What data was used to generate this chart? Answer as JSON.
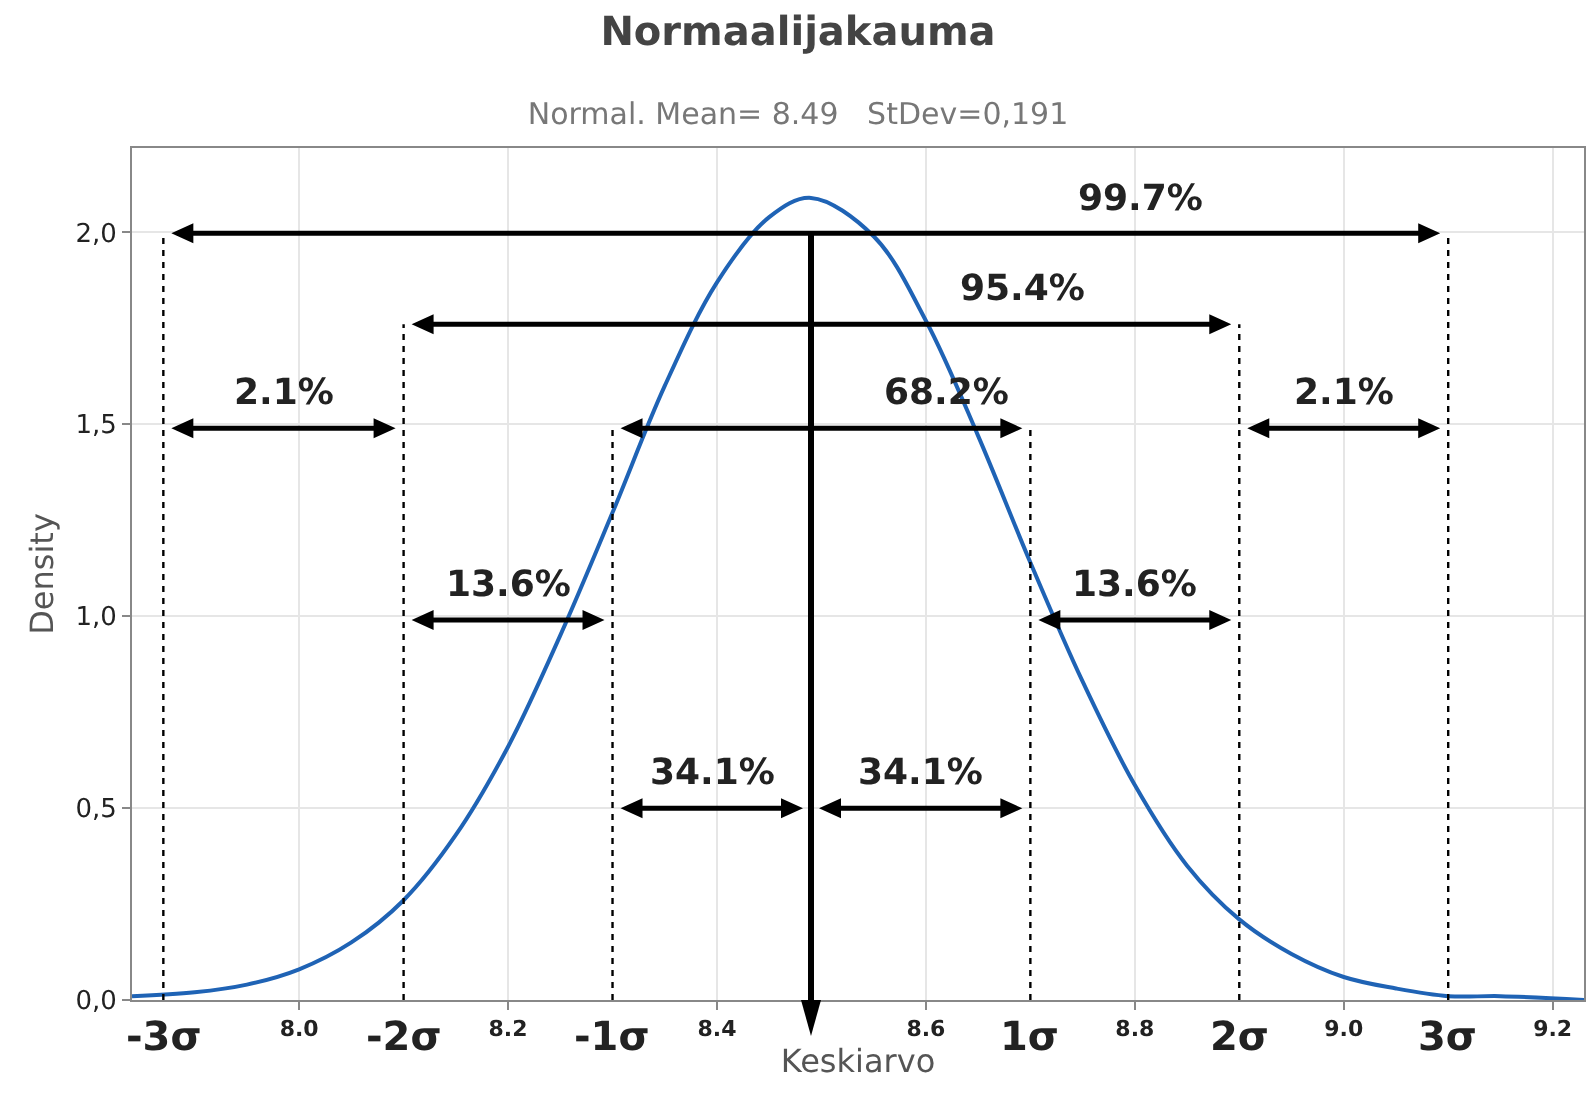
{
  "chart_data": {
    "type": "line",
    "title": "Normaalijakauma",
    "subtitle": "Normal. Mean= 8.49   StDev=0,191",
    "xlabel": "Keskiarvo",
    "ylabel": "Density",
    "x": [
      7.84,
      7.9,
      7.95,
      8.0,
      8.05,
      8.1,
      8.15,
      8.2,
      8.25,
      8.3,
      8.35,
      8.4,
      8.45,
      8.49,
      8.55,
      8.6,
      8.65,
      8.7,
      8.75,
      8.8,
      8.85,
      8.9,
      8.95,
      9.0,
      9.05,
      9.1,
      9.15,
      9.23
    ],
    "series": [
      {
        "color": "#1f63b5",
        "values": [
          0.01,
          0.02,
          0.04,
          0.08,
          0.15,
          0.26,
          0.43,
          0.66,
          0.95,
          1.27,
          1.6,
          1.87,
          2.04,
          2.09,
          1.99,
          1.77,
          1.47,
          1.14,
          0.83,
          0.56,
          0.35,
          0.21,
          0.12,
          0.06,
          0.03,
          0.01,
          0.01,
          0.0
        ]
      }
    ],
    "xlim": [
      7.84,
      9.23
    ],
    "ylim": [
      0,
      2.22
    ],
    "xticks": [
      {
        "value": 8,
        "label": "8.0"
      },
      8.2,
      8.4,
      8.6,
      8.8,
      {
        "value": 9,
        "label": "9.0"
      },
      9.2
    ],
    "yticks": [
      {
        "value": 0,
        "label": "0,0"
      },
      {
        "value": 0.5,
        "label": "0,5"
      },
      {
        "value": 1,
        "label": "1,0"
      },
      {
        "value": 1.5,
        "label": "1,5"
      },
      {
        "value": 2,
        "label": "2,0"
      }
    ],
    "grid": true,
    "marker": "none",
    "line_style": "solid",
    "ref_lines": [
      {
        "axis": "x",
        "value": 7.87,
        "label": "-3σ",
        "color": "#000000",
        "line_style": "dotted"
      },
      {
        "axis": "x",
        "value": 8.1,
        "label": "-2σ",
        "color": "#000000",
        "line_style": "dotted"
      },
      {
        "axis": "x",
        "value": 8.3,
        "label": "-1σ",
        "color": "#000000",
        "line_style": "dotted"
      },
      {
        "axis": "x",
        "value": 8.7,
        "label": "1σ",
        "color": "#000000",
        "line_style": "dotted"
      },
      {
        "axis": "x",
        "value": 8.9,
        "label": "2σ",
        "color": "#000000",
        "line_style": "dotted"
      },
      {
        "axis": "x",
        "value": 9.1,
        "label": "3σ",
        "color": "#000000",
        "line_style": "dotted"
      },
      {
        "axis": "x",
        "value": 8.49,
        "color": "#000000",
        "line_style": "solid"
      }
    ],
    "annotations": [
      "99.7%",
      "95.4%",
      "2.1%",
      "68.2%",
      "2.1%",
      "13.6%",
      "13.6%",
      "34.1%",
      "34.1%"
    ]
  }
}
